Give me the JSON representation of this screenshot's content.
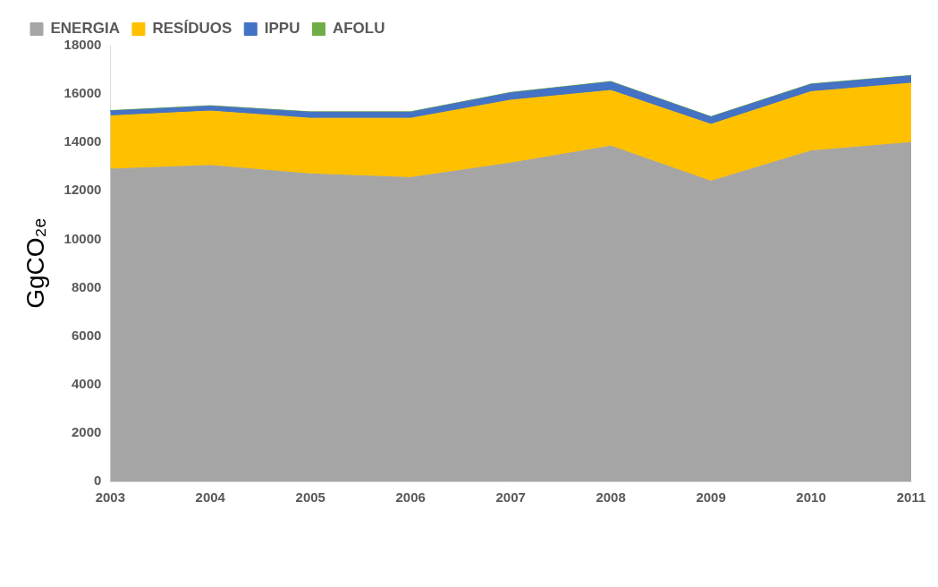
{
  "chart_data": {
    "type": "area",
    "stacked": true,
    "grid": false,
    "legend": "top-left",
    "y_label": "GgCO₂ₑ",
    "categories": [
      "2003",
      "2004",
      "2005",
      "2006",
      "2007",
      "2008",
      "2009",
      "2010",
      "2011"
    ],
    "ylim": [
      0,
      18000
    ],
    "yticks": [
      0,
      2000,
      4000,
      6000,
      8000,
      10000,
      12000,
      14000,
      16000,
      18000
    ],
    "series": [
      {
        "name": "ENERGIA",
        "color": "#a5a5a5",
        "values": [
          12900,
          13050,
          12700,
          12550,
          13150,
          13850,
          12400,
          13650,
          14000
        ]
      },
      {
        "name": "RESÍDUOS",
        "color": "#ffc000",
        "values": [
          2200,
          2250,
          2300,
          2450,
          2600,
          2300,
          2350,
          2450,
          2450
        ]
      },
      {
        "name": "IPPU",
        "color": "#4472c4",
        "values": [
          200,
          200,
          250,
          250,
          300,
          350,
          300,
          300,
          300
        ]
      },
      {
        "name": "AFOLU",
        "color": "#70ad47",
        "values": [
          20,
          20,
          20,
          20,
          20,
          20,
          20,
          20,
          20
        ]
      }
    ]
  }
}
